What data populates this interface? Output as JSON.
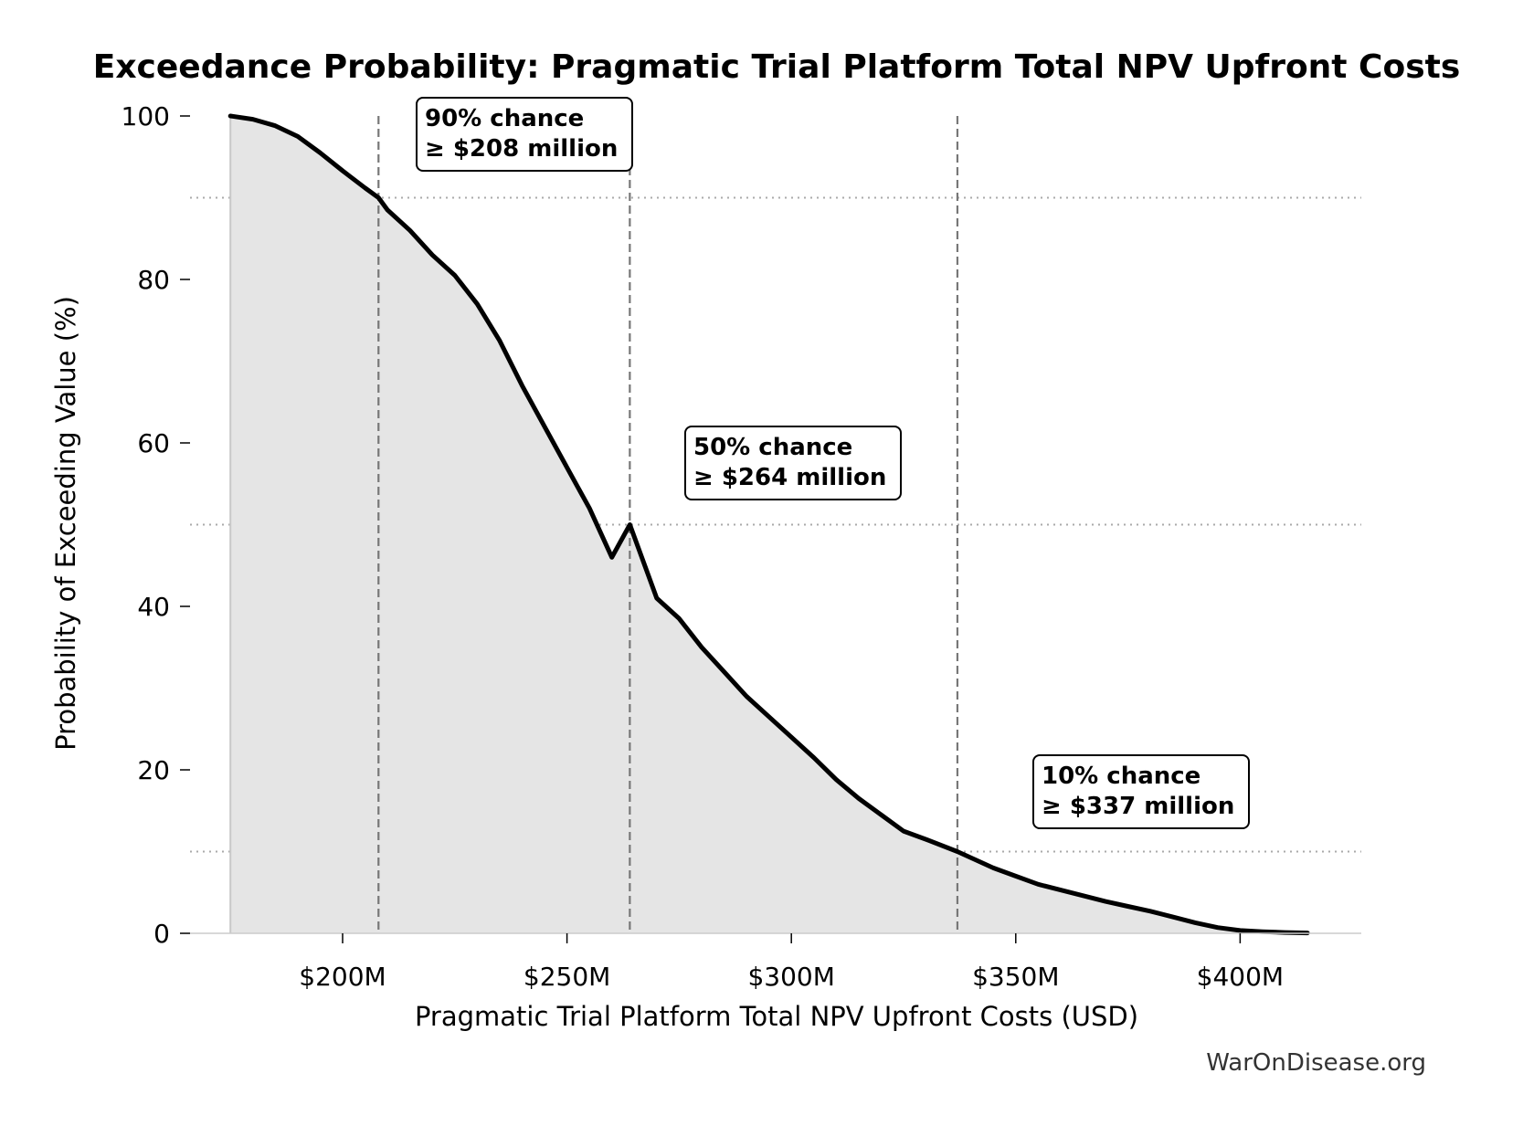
{
  "chart_data": {
    "type": "area",
    "title": "Exceedance Probability: Pragmatic Trial Platform Total NPV Upfront Costs",
    "xlabel": "Pragmatic Trial Platform Total NPV Upfront Costs (USD)",
    "ylabel": "Probability of Exceeding Value (%)",
    "xlim": [
      166,
      427
    ],
    "ylim": [
      0,
      100
    ],
    "x_ticks": [
      200,
      250,
      300,
      350,
      400
    ],
    "x_tick_labels": [
      "$200M",
      "$250M",
      "$300M",
      "$350M",
      "$400M"
    ],
    "y_ticks": [
      0,
      20,
      40,
      60,
      80,
      100
    ],
    "y_tick_labels": [
      "0",
      "20",
      "40",
      "60",
      "80",
      "100"
    ],
    "grid": "horizontal dotted at 10, 50, 90",
    "series": [
      {
        "x": [
          175,
          180,
          185,
          190,
          195,
          200,
          205,
          208,
          210,
          215,
          220,
          225,
          230,
          235,
          240,
          245,
          250,
          255,
          260,
          264,
          270,
          275,
          280,
          285,
          290,
          295,
          300,
          305,
          310,
          315,
          320,
          325,
          330,
          337,
          345,
          350,
          355,
          360,
          365,
          370,
          375,
          380,
          385,
          390,
          395,
          400,
          405,
          410,
          415
        ],
        "y": [
          100,
          99.6,
          98.8,
          97.5,
          95.5,
          93.3,
          91.2,
          90,
          88.5,
          86,
          83,
          80.5,
          77,
          72.5,
          67,
          62,
          57,
          52,
          46,
          50,
          41,
          38.5,
          35,
          32,
          29,
          26.5,
          24,
          21.5,
          18.8,
          16.5,
          14.5,
          12.5,
          11.5,
          10,
          8,
          7,
          6,
          5.3,
          4.6,
          3.9,
          3.3,
          2.7,
          2,
          1.3,
          0.7,
          0.35,
          0.2,
          0.1,
          0.05
        ]
      }
    ],
    "markers": [
      {
        "value": 208,
        "probability": 90,
        "label_line1": "90% chance",
        "label_line2": "≥ $208 million"
      },
      {
        "value": 264,
        "probability": 50,
        "label_line1": "50% chance",
        "label_line2": "≥ $264 million"
      },
      {
        "value": 337,
        "probability": 10,
        "label_line1": "10% chance",
        "label_line2": "≥ $337 million"
      }
    ]
  },
  "credit": "WarOnDisease.org",
  "colors": {
    "line": "#000000",
    "fill": "#e5e5e5",
    "guide": "#777777",
    "grid": "#aaaaaa"
  }
}
